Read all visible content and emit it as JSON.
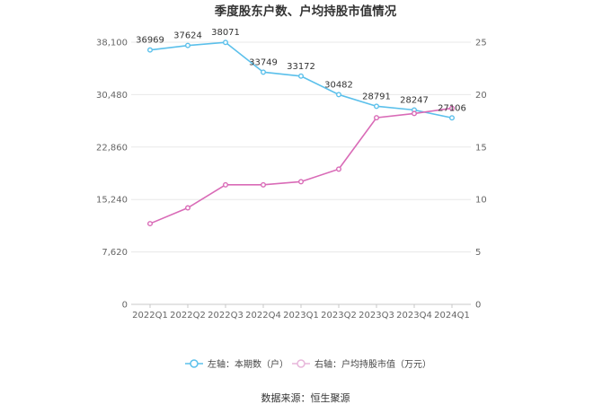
{
  "chart_data": {
    "type": "line",
    "title": "季度股东户数、户均持股市值情况",
    "categories": [
      "2022Q1",
      "2022Q2",
      "2022Q3",
      "2022Q4",
      "2023Q1",
      "2023Q2",
      "2023Q3",
      "2023Q4",
      "2024Q1"
    ],
    "left_axis": {
      "min": 0,
      "max": 38100,
      "ticks": [
        "0",
        "7,620",
        "15,240",
        "22,860",
        "30,480",
        "38,100"
      ],
      "tick_values": [
        0,
        7620,
        15240,
        22860,
        30480,
        38100
      ]
    },
    "right_axis": {
      "min": 0,
      "max": 25,
      "ticks": [
        "0",
        "5",
        "10",
        "15",
        "20",
        "25"
      ],
      "tick_values": [
        0,
        5,
        10,
        15,
        20,
        25
      ]
    },
    "series": [
      {
        "name": "左轴：本期数（户）",
        "axis": "left",
        "color": "#5bc0eb",
        "values": [
          36969,
          37624,
          38071,
          33749,
          33172,
          30482,
          28791,
          28247,
          27106
        ],
        "labels": [
          "36969",
          "37624",
          "38071",
          "33749",
          "33172",
          "30482",
          "28791",
          "28247",
          "27106"
        ]
      },
      {
        "name": "右轴：户均持股市值（万元）",
        "axis": "right",
        "color": "#d96bb7",
        "values": [
          7.7,
          9.2,
          11.4,
          11.4,
          11.7,
          12.9,
          17.8,
          18.2,
          18.7
        ]
      }
    ],
    "grid": true,
    "legend": "bottom-center"
  },
  "source": "数据来源：恒生聚源"
}
